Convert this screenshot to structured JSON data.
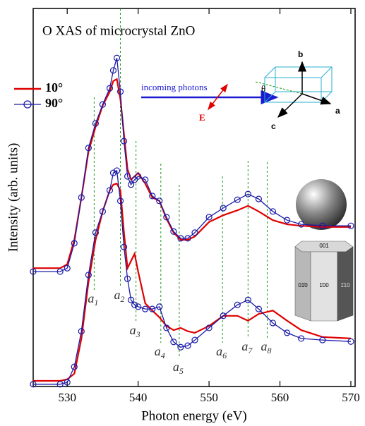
{
  "chart_data": {
    "type": "line",
    "title": "O XAS of microcrystal ZnO",
    "xlabel": "Photon energy (eV)",
    "ylabel": "Intensity (arb. units)",
    "x": [
      525.2,
      529,
      530,
      531,
      532,
      533,
      534,
      535,
      536,
      536.5,
      537,
      537.5,
      538,
      538.5,
      539,
      539.5,
      540,
      541,
      542,
      543,
      544,
      545,
      546,
      547,
      548,
      550,
      552,
      554,
      555.5,
      557,
      559,
      561,
      563,
      566,
      570
    ],
    "series": [
      {
        "name": "10°",
        "color": "#e00000",
        "circles": false,
        "values": [
          3.13,
          3.13,
          3.23,
          3.88,
          5.0,
          6.21,
          6.87,
          7.43,
          7.8,
          8.08,
          8.13,
          7.61,
          6.68,
          5.75,
          5.47,
          5.56,
          5.65,
          5.37,
          5.0,
          4.91,
          4.44,
          4.07,
          3.88,
          3.88,
          3.97,
          4.35,
          4.53,
          4.66,
          4.78,
          4.63,
          4.4,
          4.29,
          4.25,
          4.22,
          4.22
        ]
      },
      {
        "name": "90°",
        "color": "#1a1aa8",
        "circles": true,
        "values": [
          3.04,
          3.04,
          3.13,
          3.79,
          5.0,
          6.31,
          6.96,
          7.46,
          7.89,
          8.36,
          8.69,
          7.8,
          6.49,
          5.56,
          5.34,
          5.47,
          5.56,
          5.47,
          5.04,
          4.91,
          4.48,
          4.1,
          3.92,
          3.92,
          4.07,
          4.48,
          4.72,
          4.94,
          5.09,
          4.96,
          4.63,
          4.4,
          4.29,
          4.25,
          4.25
        ]
      },
      {
        "color": "#e00000",
        "circles": false,
        "values": [
          0.15,
          0.15,
          0.19,
          0.34,
          1.27,
          2.76,
          3.88,
          4.63,
          5.19,
          5.34,
          5.37,
          5.19,
          4.07,
          3.13,
          3.32,
          3.51,
          3.04,
          2.2,
          2.01,
          1.83,
          1.6,
          1.49,
          1.55,
          1.46,
          1.42,
          1.6,
          1.87,
          1.87,
          1.74,
          1.92,
          2.01,
          1.74,
          1.49,
          1.31,
          1.27
        ]
      },
      {
        "color": "#1a1aa8",
        "circles": true,
        "values": [
          0.06,
          0.06,
          0.11,
          0.52,
          1.46,
          2.95,
          4.07,
          4.63,
          5.19,
          5.65,
          5.71,
          4.91,
          3.69,
          2.85,
          2.29,
          2.16,
          2.11,
          2.05,
          2.05,
          2.11,
          1.55,
          1.18,
          1.04,
          1.08,
          1.23,
          1.55,
          1.87,
          2.16,
          2.29,
          2.05,
          1.68,
          1.42,
          1.27,
          1.23,
          1.19
        ]
      }
    ],
    "xlim": [
      525.2,
      570.6
    ],
    "ylim": [
      0,
      10
    ],
    "xticks": [
      530,
      540,
      550,
      560,
      570
    ],
    "markers": [
      {
        "x": 533.8,
        "label": "a",
        "sub": "1"
      },
      {
        "x": 537.5,
        "label": "a",
        "sub": "2"
      },
      {
        "x": 539.7,
        "label": "a",
        "sub": "3"
      },
      {
        "x": 543.2,
        "label": "a",
        "sub": "4"
      },
      {
        "x": 545.8,
        "label": "a",
        "sub": "5"
      },
      {
        "x": 551.9,
        "label": "a",
        "sub": "6"
      },
      {
        "x": 555.5,
        "label": "a",
        "sub": "7"
      },
      {
        "x": 558.2,
        "label": "a",
        "sub": "8"
      }
    ],
    "annotations": {
      "incoming": "incoming photons",
      "field": "E",
      "angle": "θ",
      "axis_a": "a",
      "axis_b": "b",
      "axis_c": "c",
      "face_top": "001",
      "face_left": "01̄0",
      "face_mid": "1̄00",
      "face_right": "1̄10"
    }
  }
}
